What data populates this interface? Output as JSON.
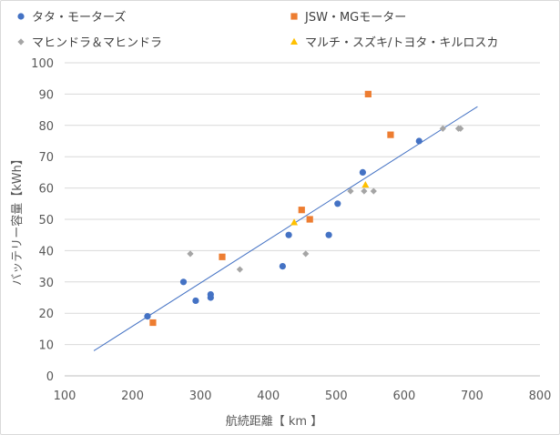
{
  "chart_data": {
    "type": "scatter",
    "title": "",
    "xlabel": "航続距離【 km 】",
    "ylabel": "バッテリー容量【kWh】",
    "xlim": [
      100,
      800
    ],
    "ylim": [
      0,
      100
    ],
    "xticks": [
      100,
      200,
      300,
      400,
      500,
      600,
      700,
      800
    ],
    "yticks": [
      0,
      10,
      20,
      30,
      40,
      50,
      60,
      70,
      80,
      90,
      100
    ],
    "grid": "horizontal",
    "legend_position": "top",
    "series": [
      {
        "name": "タタ・モーターズ",
        "marker": "circle",
        "color": "#4472c4",
        "points": [
          [
            222,
            19
          ],
          [
            275,
            30
          ],
          [
            293,
            24
          ],
          [
            315,
            26
          ],
          [
            315,
            25
          ],
          [
            421,
            35
          ],
          [
            430,
            45
          ],
          [
            489,
            45
          ],
          [
            502,
            55
          ],
          [
            539,
            65
          ],
          [
            622,
            75
          ]
        ]
      },
      {
        "name": "JSW・MGモーター",
        "marker": "square",
        "color": "#ed7d31",
        "points": [
          [
            230,
            17
          ],
          [
            332,
            38
          ],
          [
            449,
            53
          ],
          [
            461,
            50
          ],
          [
            547,
            90
          ],
          [
            580,
            77
          ]
        ]
      },
      {
        "name": "マヒンドラ＆マヒンドラ",
        "marker": "diamond",
        "color": "#a5a5a5",
        "points": [
          [
            285,
            39
          ],
          [
            358,
            34
          ],
          [
            455,
            39
          ],
          [
            521,
            59
          ],
          [
            541,
            59
          ],
          [
            555,
            59
          ],
          [
            657,
            79
          ],
          [
            680,
            79
          ],
          [
            683,
            79
          ]
        ]
      },
      {
        "name": "マルチ・スズキ/トヨタ・キルロスカ",
        "marker": "triangle",
        "color": "#ffc000",
        "points": [
          [
            438,
            49
          ],
          [
            543,
            61
          ]
        ]
      }
    ],
    "trendline": {
      "color": "#4472c4",
      "points": [
        [
          143,
          8
        ],
        [
          708,
          86
        ]
      ]
    }
  }
}
